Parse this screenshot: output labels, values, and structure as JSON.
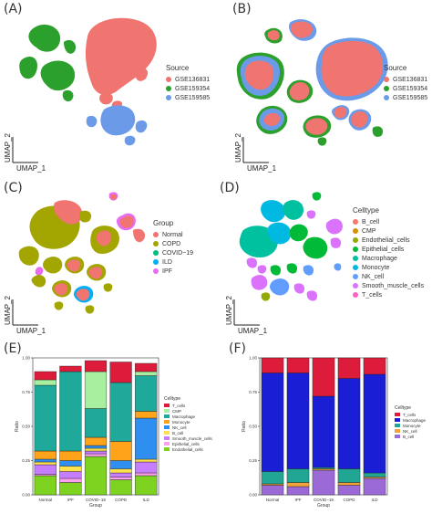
{
  "panels": {
    "A": {
      "label": "(A)",
      "xlabel": "UMAP_1",
      "ylabel": "UMAP_2",
      "legend_title": "Source",
      "legend": [
        {
          "name": "GSE136831",
          "color": "#f07470"
        },
        {
          "name": "GSE159354",
          "color": "#2ca02c"
        },
        {
          "name": "GSE159585",
          "color": "#6b9be8"
        }
      ]
    },
    "B": {
      "label": "(B)",
      "xlabel": "UMAP_1",
      "ylabel": "UMAP_2",
      "legend_title": "Source",
      "legend": [
        {
          "name": "GSE136831",
          "color": "#f07470"
        },
        {
          "name": "GSE159354",
          "color": "#2ca02c"
        },
        {
          "name": "GSE159585",
          "color": "#6b9be8"
        }
      ]
    },
    "C": {
      "label": "(C)",
      "xlabel": "UMAP_1",
      "ylabel": "UMAP_2",
      "legend_title": "Group",
      "legend": [
        {
          "name": "Normal",
          "color": "#f07470"
        },
        {
          "name": "COPD",
          "color": "#a3a500"
        },
        {
          "name": "COVID−19",
          "color": "#00bf7d"
        },
        {
          "name": "ILD",
          "color": "#00b0f6"
        },
        {
          "name": "IPF",
          "color": "#e76bf3"
        }
      ]
    },
    "D": {
      "label": "(D)",
      "xlabel": "UMAP_1",
      "ylabel": "UMAP_2",
      "legend_title": "Celltype",
      "legend": [
        {
          "name": "B_cell",
          "color": "#f8766d"
        },
        {
          "name": "CMP",
          "color": "#d39200"
        },
        {
          "name": "Endothelial_cells",
          "color": "#93aa00"
        },
        {
          "name": "Epithelial_cells",
          "color": "#00ba38"
        },
        {
          "name": "Macrophage",
          "color": "#00c19f"
        },
        {
          "name": "Monocyte",
          "color": "#00b9e3"
        },
        {
          "name": "NK_cell",
          "color": "#619cff"
        },
        {
          "name": "Smooth_muscle_cells",
          "color": "#db72fb"
        },
        {
          "name": "T_cells",
          "color": "#ff61c3"
        }
      ]
    },
    "E": {
      "label": "(E)",
      "xlabel": "Group",
      "ylabel": "Ratio",
      "legend_title": "Celltype"
    },
    "F": {
      "label": "(F)",
      "xlabel": "Group",
      "ylabel": "Ratio",
      "legend_title": "Celltype"
    }
  },
  "chart_data": [
    {
      "panel": "E",
      "type": "bar",
      "stacked": true,
      "categories": [
        "Normal",
        "IPF",
        "COVID−19",
        "COPD",
        "ILD"
      ],
      "ylim": [
        0,
        1
      ],
      "yticks": [
        "0.00",
        "0.25",
        "0.50",
        "0.75",
        "1.00"
      ],
      "xlabel": "Group",
      "ylabel": "Ratio",
      "legend_title": "Celltype",
      "series": [
        {
          "name": "Endothelial_cells",
          "color": "#7ed321",
          "values": [
            0.14,
            0.09,
            0.28,
            0.11,
            0.14
          ]
        },
        {
          "name": "Epithelial_cells",
          "color": "#ff9ff0",
          "values": [
            0.01,
            0.03,
            0.02,
            0.02,
            0.02
          ]
        },
        {
          "name": "Smooth_muscle_cells",
          "color": "#c77dff",
          "values": [
            0.07,
            0.05,
            0.02,
            0.03,
            0.08
          ]
        },
        {
          "name": "B_cell",
          "color": "#ffe14d",
          "values": [
            0.02,
            0.04,
            0.02,
            0.03,
            0.02
          ]
        },
        {
          "name": "NK_cell",
          "color": "#2f8ff0",
          "values": [
            0.02,
            0.04,
            0.02,
            0.06,
            0.3
          ]
        },
        {
          "name": "Monocyte",
          "color": "#ffa31a",
          "values": [
            0.06,
            0.07,
            0.06,
            0.14,
            0.05
          ]
        },
        {
          "name": "Macrophage",
          "color": "#1fa99b",
          "values": [
            0.48,
            0.58,
            0.21,
            0.43,
            0.26
          ]
        },
        {
          "name": "CMP",
          "color": "#a8f0a0",
          "values": [
            0.04,
            0.0,
            0.27,
            0.0,
            0.03
          ]
        },
        {
          "name": "T_cells",
          "color": "#dd1b3a",
          "values": [
            0.06,
            0.04,
            0.08,
            0.15,
            0.06
          ]
        }
      ]
    },
    {
      "panel": "F",
      "type": "bar",
      "stacked": true,
      "categories": [
        "Normal",
        "IPF",
        "COVID−19",
        "COPD",
        "ILD"
      ],
      "ylim": [
        0,
        1
      ],
      "yticks": [
        "0.00",
        "0.25",
        "0.50",
        "0.75",
        "1.00"
      ],
      "xlabel": "Group",
      "ylabel": "Ratio",
      "legend_title": "Celltype",
      "series": [
        {
          "name": "B_cell",
          "color": "#9b6ad6",
          "values": [
            0.07,
            0.06,
            0.18,
            0.07,
            0.12
          ]
        },
        {
          "name": "NK_cell",
          "color": "#f1a23a",
          "values": [
            0.01,
            0.03,
            0.01,
            0.02,
            0.01
          ]
        },
        {
          "name": "Monocyte",
          "color": "#22a694",
          "values": [
            0.09,
            0.1,
            0.01,
            0.1,
            0.03
          ]
        },
        {
          "name": "Macrophage",
          "color": "#1a1fd6",
          "values": [
            0.72,
            0.7,
            0.52,
            0.66,
            0.72
          ]
        },
        {
          "name": "T_cells",
          "color": "#dd1b3a",
          "values": [
            0.11,
            0.11,
            0.28,
            0.15,
            0.12
          ]
        }
      ]
    }
  ]
}
